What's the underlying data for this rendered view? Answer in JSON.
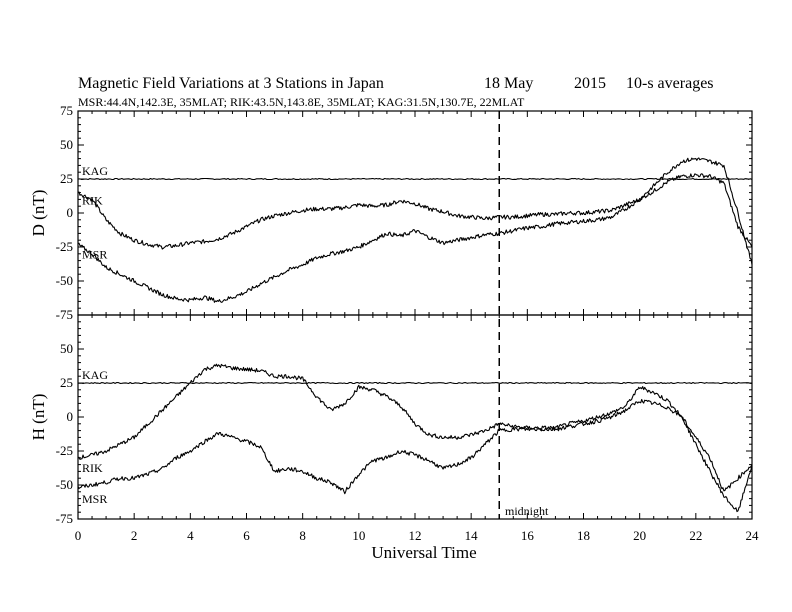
{
  "title": {
    "main": "Magnetic Field Variations at 3 Stations in Japan",
    "date": "18 May",
    "year": "2015",
    "avg": "10-s averages",
    "stations": "MSR:44.4N,142.3E, 35MLAT;   RIK:43.5N,143.8E, 35MLAT;   KAG:31.5N,130.7E, 22MLAT"
  },
  "xaxis": {
    "label": "Universal Time",
    "ticks": [
      "0",
      "2",
      "4",
      "6",
      "8",
      "10",
      "12",
      "14",
      "16",
      "18",
      "20",
      "22",
      "24"
    ],
    "range": [
      0,
      24
    ],
    "midnight_hour": 15,
    "midnight_label": "midnight"
  },
  "chart_data": [
    {
      "type": "line",
      "panel": "top",
      "ylabel": "D (nT)",
      "ylim": [
        -75,
        75
      ],
      "yticks": [
        "75",
        "50",
        "25",
        "0",
        "-25",
        "-50",
        "-75"
      ],
      "series": [
        {
          "name": "KAG",
          "x": [
            0,
            24
          ],
          "y": [
            25,
            25
          ]
        },
        {
          "name": "RIK",
          "x": [
            0,
            0.5,
            1,
            1.5,
            2,
            2.5,
            3,
            3.5,
            4,
            4.5,
            5,
            5.5,
            6,
            6.5,
            7,
            7.5,
            8,
            8.5,
            9,
            9.5,
            10,
            10.5,
            11,
            11.5,
            12,
            12.5,
            13,
            13.5,
            14,
            14.5,
            15,
            15.5,
            16,
            16.5,
            17,
            17.5,
            18,
            18.5,
            19,
            19.5,
            20,
            20.5,
            21,
            21.5,
            22,
            22.5,
            23,
            23.5,
            24
          ],
          "y": [
            15,
            10,
            -5,
            -15,
            -20,
            -23,
            -25,
            -24,
            -22,
            -21,
            -19,
            -15,
            -10,
            -5,
            -2,
            0,
            2,
            3,
            3,
            4,
            6,
            5,
            6,
            9,
            7,
            3,
            1,
            -2,
            -3,
            -4,
            -3,
            -3,
            -2,
            -1,
            -1,
            0,
            0,
            1,
            2,
            6,
            10,
            16,
            23,
            27,
            28,
            27,
            22,
            -10,
            -25
          ]
        },
        {
          "name": "MSR",
          "x": [
            0,
            0.5,
            1,
            1.5,
            2,
            2.5,
            3,
            3.5,
            4,
            4.5,
            5,
            5.5,
            6,
            6.5,
            7,
            7.5,
            8,
            8.5,
            9,
            9.5,
            10,
            10.5,
            11,
            11.5,
            12,
            12.5,
            13,
            13.5,
            14,
            14.5,
            15,
            15.5,
            16,
            16.5,
            17,
            17.5,
            18,
            18.5,
            19,
            19.5,
            20,
            20.5,
            21,
            21.5,
            22,
            22.5,
            23,
            23.5,
            24
          ],
          "y": [
            -23,
            -30,
            -40,
            -45,
            -50,
            -55,
            -60,
            -63,
            -64,
            -62,
            -65,
            -62,
            -58,
            -52,
            -47,
            -42,
            -38,
            -33,
            -30,
            -28,
            -25,
            -20,
            -15,
            -17,
            -13,
            -18,
            -22,
            -20,
            -18,
            -16,
            -15,
            -13,
            -11,
            -10,
            -8,
            -7,
            -6,
            -5,
            -3,
            3,
            10,
            20,
            30,
            38,
            40,
            38,
            35,
            0,
            -38
          ]
        }
      ]
    },
    {
      "type": "line",
      "panel": "bottom",
      "ylabel": "H (nT)",
      "ylim": [
        -75,
        75
      ],
      "yticks": [
        "75",
        "50",
        "25",
        "0",
        "-25",
        "-50",
        "-75"
      ],
      "series": [
        {
          "name": "KAG",
          "x": [
            0,
            24
          ],
          "y": [
            25,
            25
          ]
        },
        {
          "name": "RIK",
          "x": [
            0,
            0.5,
            1,
            1.5,
            2,
            2.5,
            3,
            3.5,
            4,
            4.5,
            5,
            5.5,
            6,
            6.5,
            7,
            7.5,
            8,
            8.5,
            9,
            9.5,
            10,
            10.5,
            11,
            11.5,
            12,
            12.5,
            13,
            13.5,
            14,
            14.5,
            15,
            15.5,
            16,
            16.5,
            17,
            17.5,
            18,
            18.5,
            19,
            19.5,
            20,
            20.5,
            21,
            21.5,
            22,
            22.5,
            23,
            23.5,
            24
          ],
          "y": [
            -30,
            -28,
            -25,
            -20,
            -15,
            -5,
            5,
            15,
            25,
            35,
            38,
            36,
            35,
            34,
            30,
            30,
            28,
            15,
            5,
            10,
            22,
            20,
            15,
            8,
            -5,
            -13,
            -15,
            -15,
            -13,
            -10,
            -5,
            -7,
            -8,
            -8,
            -8,
            -5,
            -3,
            0,
            3,
            8,
            22,
            18,
            12,
            0,
            -15,
            -30,
            -55,
            -45,
            -35
          ]
        },
        {
          "name": "MSR",
          "x": [
            0,
            0.5,
            1,
            1.5,
            2,
            2.5,
            3,
            3.5,
            4,
            4.5,
            5,
            5.5,
            6,
            6.5,
            7,
            7.5,
            8,
            8.5,
            9,
            9.5,
            10,
            10.5,
            11,
            11.5,
            12,
            12.5,
            13,
            13.5,
            14,
            14.5,
            15,
            15.5,
            16,
            16.5,
            17,
            17.5,
            18,
            18.5,
            19,
            19.5,
            20,
            20.5,
            21,
            21.5,
            22,
            22.5,
            23,
            23.5,
            24
          ],
          "y": [
            -52,
            -50,
            -48,
            -45,
            -45,
            -42,
            -38,
            -30,
            -25,
            -18,
            -12,
            -15,
            -18,
            -22,
            -40,
            -38,
            -40,
            -45,
            -48,
            -55,
            -42,
            -32,
            -30,
            -25,
            -28,
            -32,
            -38,
            -35,
            -30,
            -20,
            -10,
            -9,
            -9,
            -9,
            -9,
            -7,
            -5,
            -3,
            0,
            5,
            12,
            10,
            7,
            0,
            -20,
            -40,
            -58,
            -70,
            -35
          ]
        }
      ]
    }
  ]
}
